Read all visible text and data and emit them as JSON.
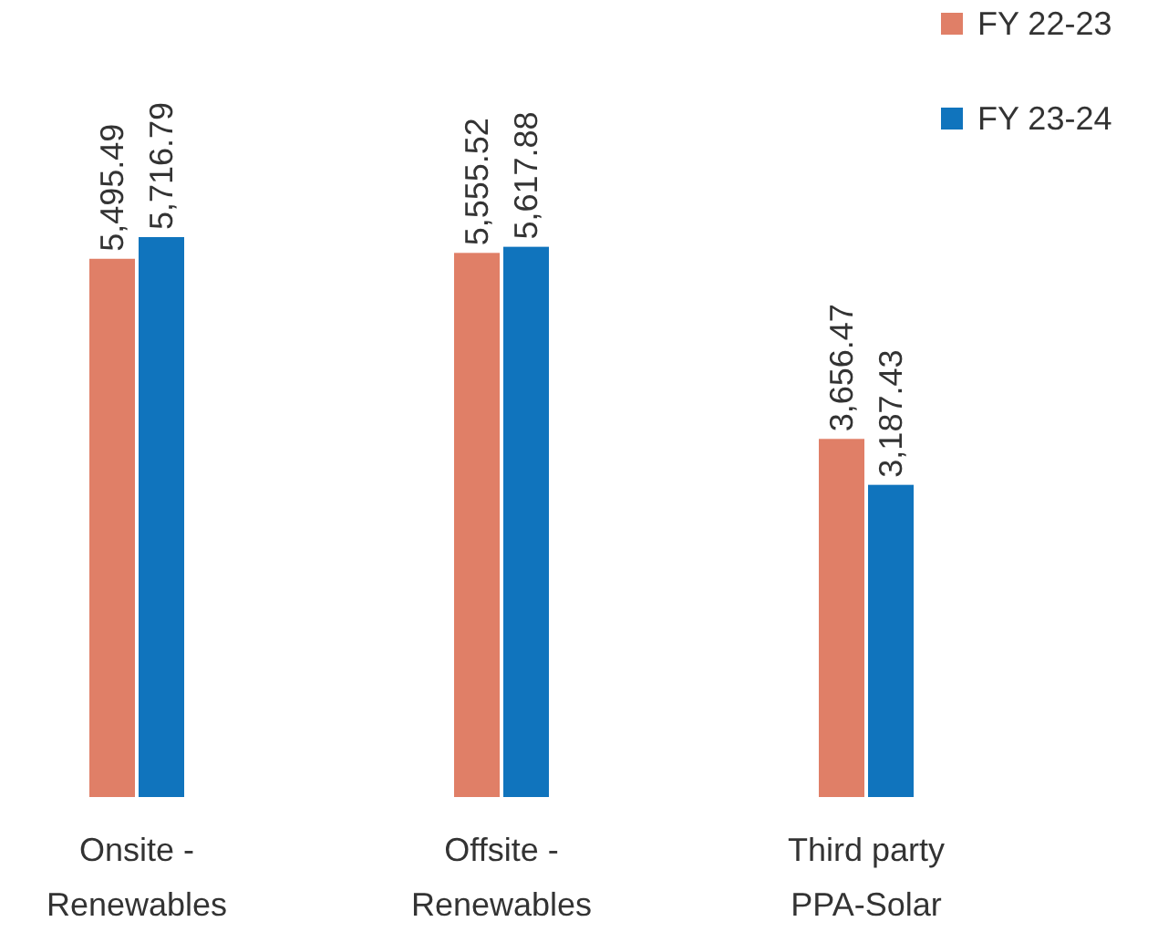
{
  "chart_data": {
    "type": "bar",
    "categories": [
      "Onsite -\nRenewables",
      "Offsite -\nRenewables",
      "Third party\nPPA-Solar"
    ],
    "series": [
      {
        "name": "FY 22-23",
        "color": "#e07f67",
        "values": [
          5495.49,
          5555.52,
          3656.47
        ],
        "value_labels": [
          "5,495.49",
          "5,555.52",
          "3,656.47"
        ]
      },
      {
        "name": "FY 23-24",
        "color": "#1074bd",
        "values": [
          5716.79,
          5617.88,
          3187.43
        ],
        "value_labels": [
          "5,716.79",
          "5,617.88",
          "3,187.43"
        ]
      }
    ],
    "legend": "top right"
  }
}
